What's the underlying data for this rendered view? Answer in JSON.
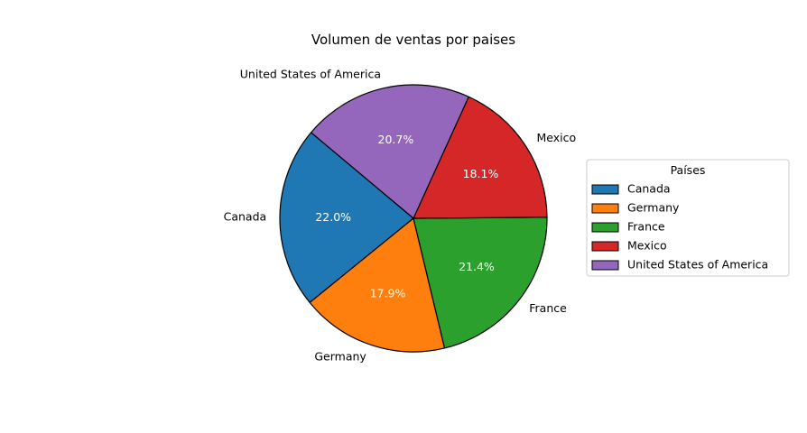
{
  "chart_data": {
    "type": "pie",
    "title": "Volumen de ventas por paises",
    "categories": [
      "Canada",
      "Germany",
      "France",
      "Mexico",
      "United States of America"
    ],
    "values": [
      22.0,
      17.9,
      21.4,
      18.1,
      20.7
    ],
    "value_labels": [
      "22.0%",
      "17.9%",
      "21.4%",
      "18.1%",
      "20.7%"
    ],
    "colors": [
      "#1f77b4",
      "#ff7f0e",
      "#2ca02c",
      "#d62728",
      "#9467bd"
    ],
    "legend": {
      "title": "Países",
      "placement": "right",
      "entries": [
        "Canada",
        "Germany",
        "France",
        "Mexico",
        "United States of America"
      ]
    },
    "start_angle_deg": 140,
    "direction": "counterclockwise",
    "edge_color": "#000000"
  }
}
